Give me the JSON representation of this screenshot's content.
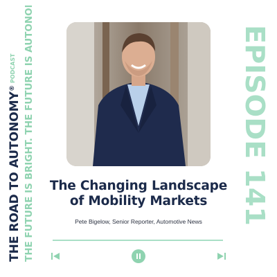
{
  "brand": {
    "show_name": "THE ROAD TO AUTONOMY",
    "registered_mark": "®",
    "podcast_label": "PODCAST",
    "tagline": "THE FUTURE IS BRIGHT. THE FUTURE IS AUTONOMOUS.",
    "trademark": "™"
  },
  "episode": {
    "label": "EPISODE",
    "number": "141"
  },
  "cover": {
    "photo_icon": "guest-portrait",
    "title_line1": "The Changing Landscape",
    "title_line2": "of Mobility Markets",
    "guest": "Pete Bigelow, Senior Reporter, Automotive News"
  },
  "player": {
    "progress": 0,
    "prev_icon": "skip-back-icon",
    "pause_icon": "pause-icon",
    "next_icon": "skip-forward-icon"
  },
  "colors": {
    "navy": "#1b2a4a",
    "mint": "#8fd3b0",
    "mint_light": "#a9dfc6"
  }
}
